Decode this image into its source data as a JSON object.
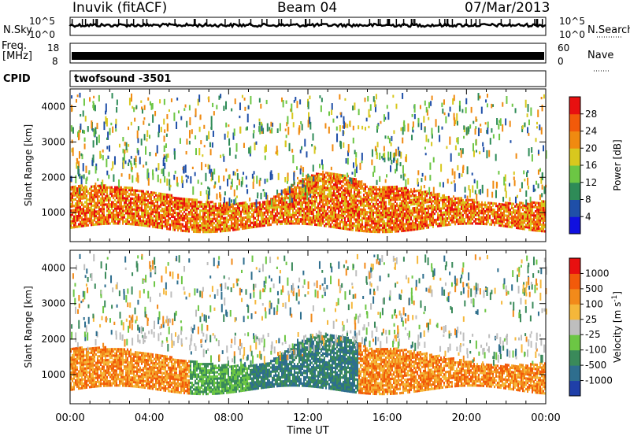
{
  "header": {
    "station": "Inuvik  (fitACF)",
    "beam": "Beam 04",
    "date": "07/Mar/2013"
  },
  "strip_panels": {
    "nsky_label": "N.Sky",
    "nsky_ticks": [
      "10^5",
      "10^0"
    ],
    "nsearch_label": "N.Search",
    "nsearch_ticks": [
      "10^5",
      "10^0"
    ],
    "freq_label": "Freq.",
    "freq_unit": "[MHz]",
    "freq_ticks": [
      "18",
      "8"
    ],
    "nave_label": "Nave",
    "nave_ticks": [
      "60",
      "0"
    ],
    "cpid_label": "CPID",
    "cpid_value": "twofsound -3501"
  },
  "chart_data": [
    {
      "type": "heatmap",
      "name": "power",
      "ylabel": "Slant Range [km]",
      "xlabel": "",
      "ylim": [
        180,
        4500
      ],
      "xlim": [
        0,
        24
      ],
      "yticks": [
        "1000",
        "2000",
        "3000",
        "4000"
      ],
      "colorbar": {
        "label": "Power [dB]",
        "ticks": [
          "4",
          "8",
          "12",
          "16",
          "20",
          "24",
          "28"
        ],
        "colors": [
          "#1010e0",
          "#1f4fa8",
          "#2e8b57",
          "#6cc644",
          "#d8c81e",
          "#f08a10",
          "#f25a0a",
          "#e81010"
        ]
      }
    },
    {
      "type": "heatmap",
      "name": "velocity",
      "ylabel": "Slant Range [km]",
      "xlabel": "Time UT",
      "ylim": [
        180,
        4500
      ],
      "xlim": [
        0,
        24
      ],
      "yticks": [
        "1000",
        "2000",
        "3000",
        "4000"
      ],
      "xticks": [
        "00:00",
        "04:00",
        "08:00",
        "12:00",
        "16:00",
        "20:00",
        "00:00"
      ],
      "colorbar": {
        "label": "Velocity [m s",
        "label_sup": "-1",
        "label_end": "]",
        "ticks": [
          "1000",
          "500",
          "100",
          "25",
          "-25",
          "-100",
          "-500",
          "-1000"
        ],
        "colors": [
          "#1f3fa8",
          "#2e6e8e",
          "#3a8a5a",
          "#6cc644",
          "#bebebe",
          "#f5b73a",
          "#f28a1a",
          "#f25a0a",
          "#e81010"
        ]
      }
    }
  ]
}
